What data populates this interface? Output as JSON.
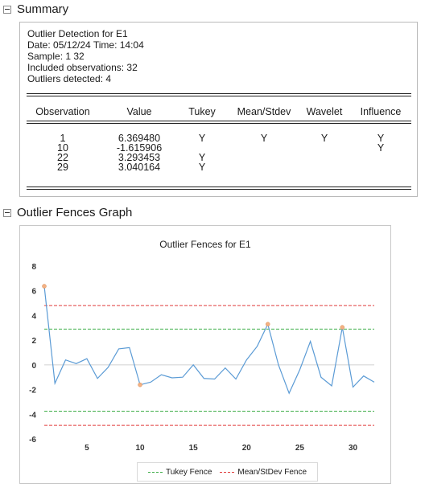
{
  "summary_section": {
    "title": "Summary"
  },
  "summary": {
    "heading": "Outlier Detection for E1",
    "date_time": "Date: 05/12/24   Time: 14:04",
    "sample": "Sample: 1 32",
    "included": "Included observations: 32",
    "detected": "Outliers detected: 4",
    "columns": [
      "Observation",
      "Value",
      "Tukey",
      "Mean/Stdev",
      "Wavelet",
      "Influence"
    ],
    "rows": [
      [
        "1",
        "6.369480",
        "Y",
        "Y",
        "Y",
        "Y"
      ],
      [
        "10",
        "-1.615906",
        "",
        "",
        "",
        "Y"
      ],
      [
        "22",
        "3.293453",
        "Y",
        "",
        "",
        ""
      ],
      [
        "29",
        "3.040164",
        "Y",
        "",
        "",
        ""
      ]
    ]
  },
  "graph_section": {
    "title": "Outlier Fences Graph"
  },
  "colors": {
    "series": "#5b9bd5",
    "outlier_marker": "#f4b183",
    "tukey_fence": "#3fae49",
    "meanstd_fence": "#e03b3b",
    "zero_line": "#d0d0d0"
  },
  "chart_data": {
    "type": "line",
    "title": "Outlier Fences for E1",
    "xlabel": "",
    "ylabel": "",
    "xlim": [
      1,
      32
    ],
    "ylim": [
      -6,
      8
    ],
    "x_ticks": [
      5,
      10,
      15,
      20,
      25,
      30
    ],
    "y_ticks": [
      -6,
      -4,
      -2,
      0,
      2,
      4,
      6,
      8
    ],
    "grid": false,
    "x": [
      1,
      2,
      3,
      4,
      5,
      6,
      7,
      8,
      9,
      10,
      11,
      12,
      13,
      14,
      15,
      16,
      17,
      18,
      19,
      20,
      21,
      22,
      23,
      24,
      25,
      26,
      27,
      28,
      29,
      30,
      31,
      32
    ],
    "series": [
      {
        "values": [
          6.369,
          -1.5,
          0.4,
          0.1,
          0.5,
          -1.1,
          -0.2,
          1.3,
          1.4,
          -1.616,
          -1.4,
          -0.8,
          -1.05,
          -1.0,
          0.0,
          -1.1,
          -1.15,
          -0.25,
          -1.15,
          0.4,
          1.5,
          3.293,
          0.0,
          -2.3,
          -0.4,
          1.9,
          -1.0,
          -1.7,
          3.04,
          -1.8,
          -0.9,
          -1.4
        ]
      }
    ],
    "outliers": [
      {
        "x": 1,
        "y": 6.369
      },
      {
        "x": 10,
        "y": -1.616
      },
      {
        "x": 22,
        "y": 3.293
      },
      {
        "x": 29,
        "y": 3.04
      }
    ],
    "fences": [
      {
        "name": "Tukey Fence",
        "upper": 2.9,
        "lower": -3.75
      },
      {
        "name": "Mean/StDev Fence",
        "upper": 4.8,
        "lower": -4.9
      }
    ],
    "legend_position": "bottom"
  }
}
